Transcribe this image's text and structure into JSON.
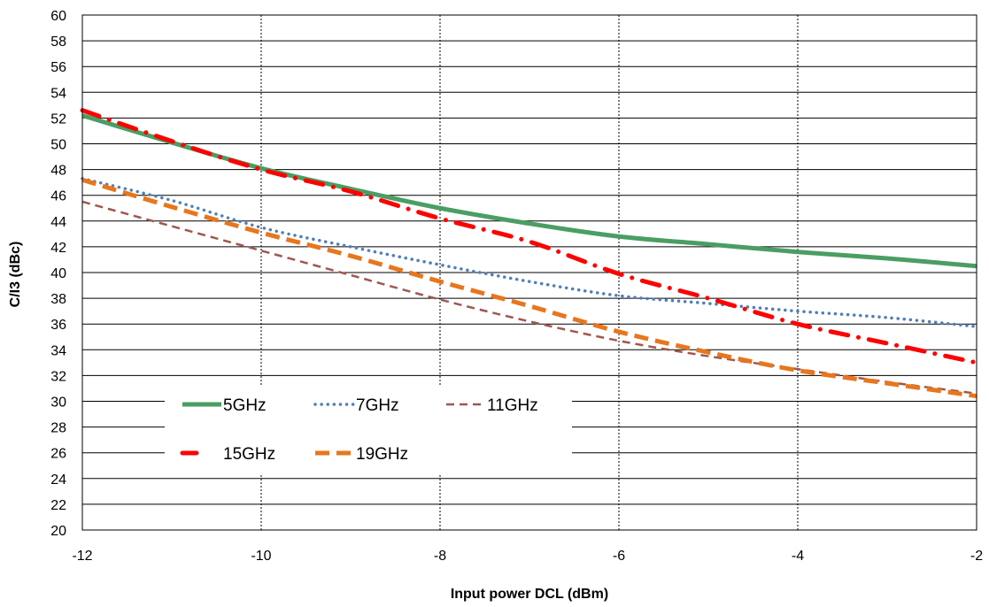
{
  "chart_data": {
    "type": "line",
    "xlabel": "Input power DCL (dBm)",
    "ylabel": "C/I3  (dBc)",
    "xlim": [
      -12,
      -2
    ],
    "ylim": [
      20,
      60
    ],
    "x_ticks": [
      "-12",
      "-10",
      "-8",
      "-6",
      "-4",
      "-2"
    ],
    "y_ticks": [
      "20",
      "22",
      "24",
      "26",
      "28",
      "30",
      "32",
      "34",
      "36",
      "38",
      "40",
      "42",
      "44",
      "46",
      "48",
      "50",
      "52",
      "54",
      "56",
      "58",
      "60"
    ],
    "grid": "horizontal solid at every y tick, vertical dotted at every x tick",
    "legend_placement": "lower-left inside plot",
    "x": [
      -12,
      -11,
      -10,
      -9,
      -8,
      -7,
      -6,
      -5,
      -4,
      -3,
      -2
    ],
    "series": [
      {
        "name": "5GHz",
        "color": "#4a9e63",
        "style": "solid",
        "values": [
          52.2,
          50.1,
          48.1,
          46.5,
          45.0,
          43.8,
          42.8,
          42.2,
          41.6,
          41.1,
          40.5
        ]
      },
      {
        "name": "7GHz",
        "color": "#4f7fba",
        "style": "dotted",
        "values": [
          47.3,
          45.6,
          43.5,
          42.0,
          40.6,
          39.3,
          38.2,
          37.6,
          37.0,
          36.5,
          35.8
        ]
      },
      {
        "name": "11GHz",
        "color": "#a0574e",
        "style": "dashed",
        "values": [
          45.5,
          43.6,
          41.7,
          39.8,
          37.9,
          36.2,
          34.7,
          33.5,
          32.5,
          31.5,
          30.6
        ]
      },
      {
        "name": "15GHz",
        "color": "#ff0000",
        "style": "dashdot",
        "values": [
          52.6,
          50.2,
          48.0,
          46.3,
          44.2,
          42.4,
          39.9,
          38.0,
          36.0,
          34.5,
          33.0
        ]
      },
      {
        "name": "19GHz",
        "color": "#e8761c",
        "style": "dashed-thick",
        "values": [
          47.2,
          45.1,
          43.1,
          41.3,
          39.3,
          37.4,
          35.4,
          33.8,
          32.4,
          31.4,
          30.4
        ]
      }
    ]
  }
}
